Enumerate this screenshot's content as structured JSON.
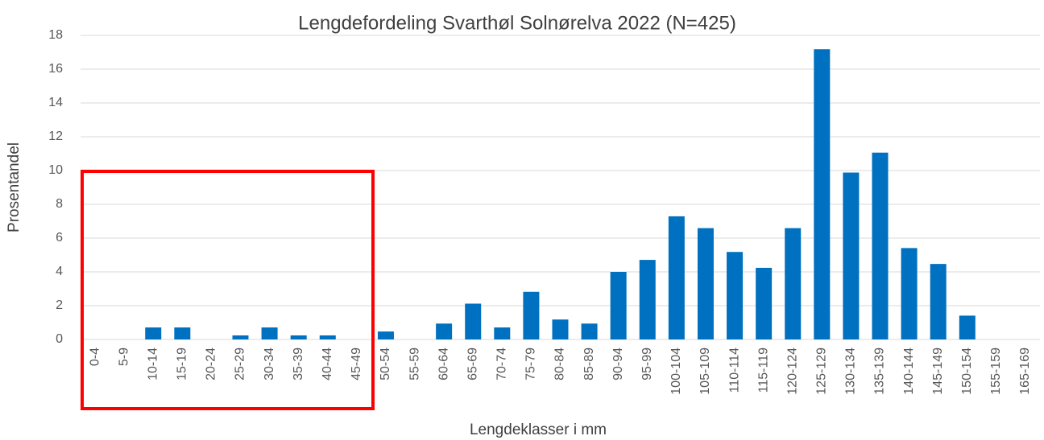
{
  "chart_data": {
    "type": "bar",
    "title": "Lengdefordeling  Svarthøl Solnørelva 2022 (N=425)",
    "x_label": "Lengdeklasser i mm",
    "y_label": "Prosentandel",
    "categories": [
      "0-4",
      "5-9",
      "10-14",
      "15-19",
      "20-24",
      "25-29",
      "30-34",
      "35-39",
      "40-44",
      "45-49",
      "50-54",
      "55-59",
      "60-64",
      "65-69",
      "70-74",
      "75-79",
      "80-84",
      "85-89",
      "90-94",
      "95-99",
      "100-104",
      "105-109",
      "110-114",
      "115-119",
      "120-124",
      "125-129",
      "130-134",
      "135-139",
      "140-144",
      "145-149",
      "150-154",
      "155-159",
      "165-169"
    ],
    "values": [
      0,
      0,
      0.71,
      0.71,
      0,
      0.24,
      0.71,
      0.24,
      0.24,
      0,
      0.47,
      0,
      0.94,
      2.12,
      0.71,
      2.82,
      1.18,
      0.94,
      4.0,
      4.71,
      7.29,
      6.59,
      5.18,
      4.24,
      6.59,
      17.18,
      9.88,
      11.06,
      5.41,
      4.47,
      1.41,
      0,
      0
    ],
    "color": "#0070c0",
    "ylim": [
      0,
      18
    ],
    "yticks": [
      0,
      2,
      4,
      6,
      8,
      10,
      12,
      14,
      16,
      18
    ],
    "grid": true
  }
}
